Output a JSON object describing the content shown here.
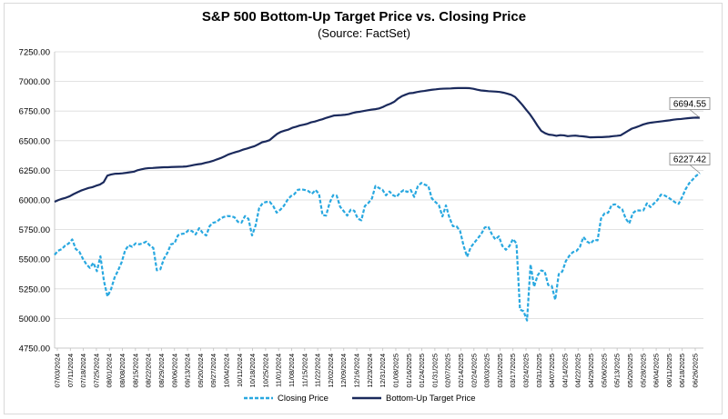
{
  "chart_data": {
    "type": "line",
    "title": "S&P 500 Bottom-Up Target Price vs. Closing Price",
    "subtitle": "(Source: FactSet)",
    "xlabel": "",
    "ylabel": "",
    "ylim": [
      4750,
      7250
    ],
    "y_ticks": [
      "4750.00",
      "5000.00",
      "5250.00",
      "5500.00",
      "5750.00",
      "6000.00",
      "6250.00",
      "6500.00",
      "6750.00",
      "7000.00",
      "7250.00"
    ],
    "x_ticks": [
      "07/03/2024",
      "07/11/2024",
      "07/18/2024",
      "07/25/2024",
      "08/01/2024",
      "08/08/2024",
      "08/15/2024",
      "08/22/2024",
      "08/29/2024",
      "09/06/2024",
      "09/13/2024",
      "09/20/2024",
      "09/27/2024",
      "10/04/2024",
      "10/11/2024",
      "10/18/2024",
      "10/25/2024",
      "11/01/2024",
      "11/08/2024",
      "11/15/2024",
      "11/22/2024",
      "12/02/2024",
      "12/09/2024",
      "12/16/2024",
      "12/23/2024",
      "12/31/2024",
      "01/08/2025",
      "01/16/2025",
      "01/24/2025",
      "01/31/2025",
      "02/07/2025",
      "02/14/2025",
      "02/24/2025",
      "03/03/2025",
      "03/10/2025",
      "03/17/2025",
      "03/24/2025",
      "03/31/2025",
      "04/07/2025",
      "04/14/2025",
      "04/22/2025",
      "04/29/2025",
      "05/06/2025",
      "05/13/2025",
      "05/20/2025",
      "05/28/2025",
      "06/04/2025",
      "06/11/2025",
      "06/18/2025",
      "06/26/2025"
    ],
    "grid": true,
    "legend": "bottom",
    "series": [
      {
        "name": "Closing Price",
        "color": "#29a8e0",
        "style": "dashed",
        "end_label": "6227.42",
        "values": [
          5537,
          5572,
          5585,
          5615,
          5633,
          5667,
          5586,
          5564,
          5505,
          5458,
          5427,
          5470,
          5399,
          5525,
          5315,
          5186,
          5246,
          5344,
          5405,
          5473,
          5574,
          5618,
          5605,
          5634,
          5626,
          5634,
          5648,
          5616,
          5595,
          5407,
          5415,
          5504,
          5554,
          5626,
          5634,
          5702,
          5713,
          5718,
          5745,
          5737,
          5709,
          5762,
          5722,
          5700,
          5781,
          5808,
          5815,
          5842,
          5857,
          5864,
          5863,
          5854,
          5815,
          5808,
          5864,
          5840,
          5701,
          5783,
          5929,
          5973,
          5983,
          5985,
          5949,
          5893,
          5917,
          5949,
          5998,
          6032,
          6049,
          6086,
          6090,
          6084,
          6074,
          6052,
          6084,
          6051,
          5872,
          5868,
          5975,
          6040,
          6037,
          5942,
          5906,
          5868,
          5918,
          5909,
          5842,
          5828,
          5949,
          5975,
          6012,
          6118,
          6101,
          6086,
          6039,
          6071,
          6040,
          6026,
          6062,
          6083,
          6068,
          6084,
          6026,
          6114,
          6144,
          6129,
          6118,
          6013,
          5983,
          5956,
          5861,
          5954,
          5849,
          5778,
          5778,
          5739,
          5614,
          5521,
          5599,
          5638,
          5675,
          5712,
          5768,
          5776,
          5712,
          5667,
          5693,
          5612,
          5580,
          5611,
          5670,
          5633,
          5074,
          5062,
          4983,
          5456,
          5268,
          5363,
          5405,
          5397,
          5282,
          5275,
          5158,
          5375,
          5396,
          5484,
          5529,
          5560,
          5569,
          5604,
          5687,
          5650,
          5631,
          5664,
          5659,
          5844,
          5887,
          5892,
          5958,
          5963,
          5940,
          5921,
          5842,
          5802,
          5888,
          5912,
          5911,
          5912,
          5971,
          5940,
          5970,
          6000,
          6045,
          6038,
          6022,
          6001,
          5980,
          5967,
          6025,
          6092,
          6141,
          6173,
          6204,
          6227
        ]
      },
      {
        "name": "Bottom-Up Target Price",
        "color": "#1b2a5c",
        "style": "solid",
        "end_label": "6694.55",
        "values": [
          5985,
          5999,
          6010,
          6019,
          6031,
          6049,
          6064,
          6079,
          6090,
          6101,
          6108,
          6120,
          6130,
          6150,
          6206,
          6215,
          6221,
          6222,
          6225,
          6229,
          6234,
          6238,
          6251,
          6258,
          6265,
          6269,
          6270,
          6272,
          6274,
          6276,
          6276,
          6278,
          6279,
          6280,
          6281,
          6283,
          6289,
          6296,
          6301,
          6305,
          6314,
          6321,
          6330,
          6342,
          6353,
          6367,
          6383,
          6394,
          6404,
          6413,
          6425,
          6434,
          6444,
          6454,
          6470,
          6487,
          6494,
          6505,
          6532,
          6558,
          6575,
          6585,
          6594,
          6609,
          6618,
          6628,
          6635,
          6643,
          6655,
          6662,
          6672,
          6681,
          6693,
          6702,
          6712,
          6714,
          6716,
          6719,
          6724,
          6734,
          6741,
          6745,
          6751,
          6757,
          6762,
          6766,
          6772,
          6784,
          6800,
          6812,
          6828,
          6855,
          6875,
          6888,
          6900,
          6903,
          6910,
          6916,
          6920,
          6925,
          6930,
          6933,
          6937,
          6939,
          6940,
          6941,
          6943,
          6944,
          6944,
          6944,
          6943,
          6938,
          6930,
          6924,
          6921,
          6918,
          6916,
          6914,
          6911,
          6905,
          6897,
          6887,
          6870,
          6837,
          6801,
          6761,
          6722,
          6676,
          6626,
          6582,
          6563,
          6551,
          6548,
          6541,
          6547,
          6545,
          6538,
          6541,
          6543,
          6539,
          6537,
          6533,
          6528,
          6529,
          6530,
          6530,
          6532,
          6534,
          6538,
          6541,
          6545,
          6564,
          6583,
          6602,
          6612,
          6624,
          6637,
          6646,
          6652,
          6656,
          6660,
          6664,
          6668,
          6672,
          6677,
          6681,
          6683,
          6687,
          6690,
          6693,
          6695,
          6694
        ]
      }
    ]
  }
}
